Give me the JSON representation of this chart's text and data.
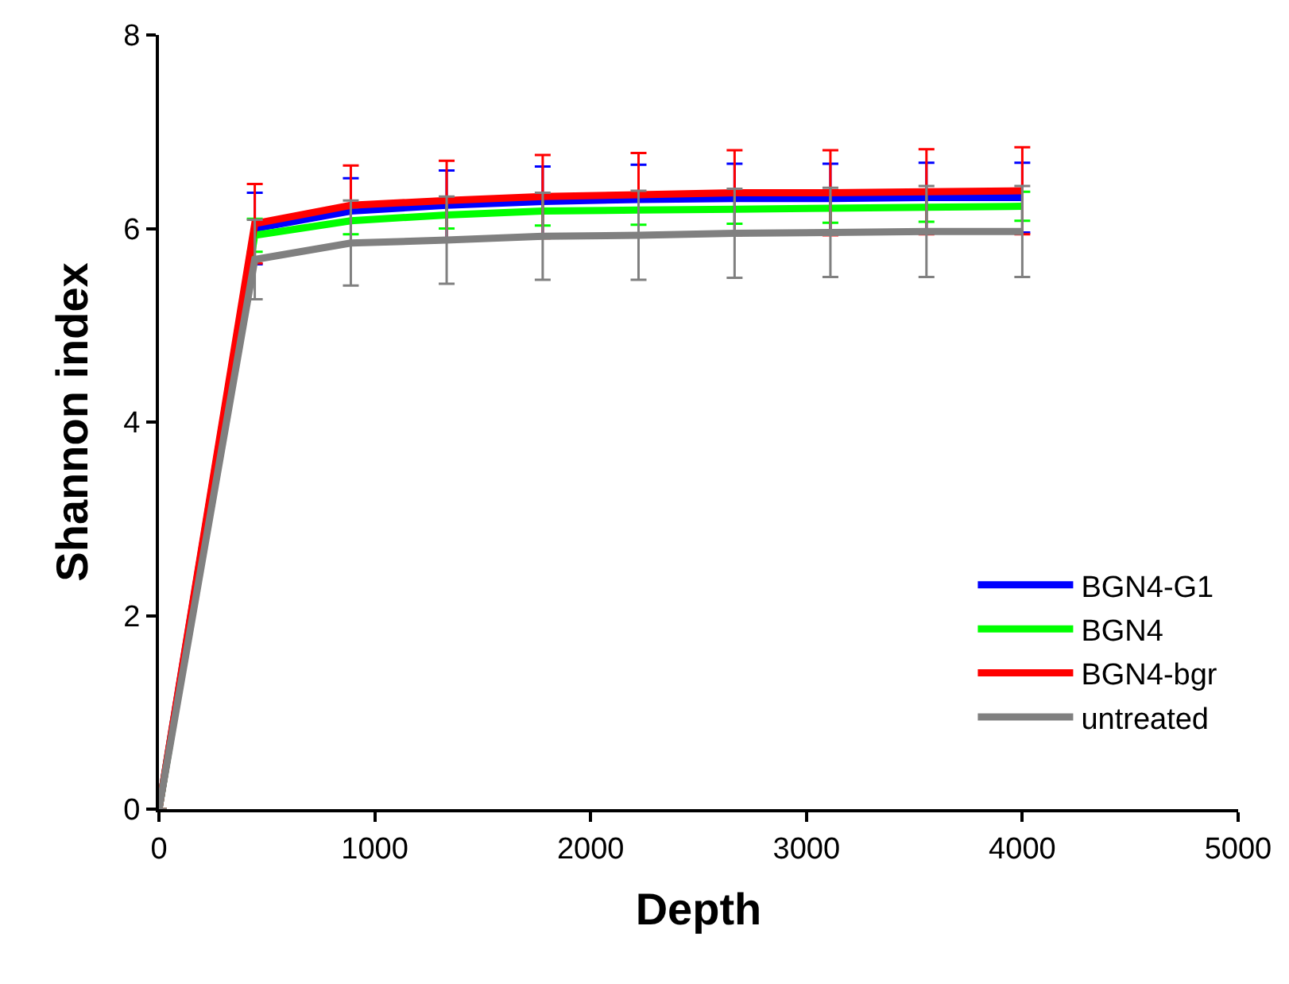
{
  "chart_data": {
    "type": "line",
    "xlabel": "Depth",
    "ylabel": "Shannon index",
    "x": [
      0,
      444,
      889,
      1333,
      1778,
      2222,
      2667,
      3111,
      3556,
      4000
    ],
    "xlim": [
      0,
      5000
    ],
    "xticks": [
      0,
      1000,
      2000,
      3000,
      4000,
      5000
    ],
    "ylim": [
      0,
      8
    ],
    "yticks": [
      0,
      2,
      4,
      6,
      8
    ],
    "grid": false,
    "legend": "bottom right",
    "marker": "none",
    "line_style": "solid",
    "series": [
      {
        "name": "BGN4-G1",
        "color": "#0000ff",
        "values": [
          0,
          6.0,
          6.18,
          6.24,
          6.28,
          6.3,
          6.31,
          6.31,
          6.32,
          6.32
        ],
        "errors": [
          null,
          0.37,
          0.34,
          0.36,
          0.36,
          0.36,
          0.36,
          0.36,
          0.36,
          0.36
        ]
      },
      {
        "name": "BGN4",
        "color": "#00ff00",
        "values": [
          0,
          5.93,
          6.08,
          6.14,
          6.18,
          6.19,
          6.2,
          6.21,
          6.22,
          6.23
        ],
        "errors": [
          null,
          0.17,
          0.14,
          0.14,
          0.15,
          0.15,
          0.15,
          0.15,
          0.15,
          0.15
        ]
      },
      {
        "name": "BGN4-bgr",
        "color": "#ff0000",
        "values": [
          0,
          6.05,
          6.24,
          6.29,
          6.33,
          6.35,
          6.37,
          6.37,
          6.38,
          6.39
        ],
        "errors": [
          null,
          0.41,
          0.41,
          0.41,
          0.43,
          0.43,
          0.44,
          0.44,
          0.44,
          0.45
        ]
      },
      {
        "name": "untreated",
        "color": "#808080",
        "values": [
          0,
          5.68,
          5.85,
          5.88,
          5.92,
          5.93,
          5.95,
          5.96,
          5.97,
          5.97
        ],
        "errors": [
          null,
          0.41,
          0.44,
          0.45,
          0.45,
          0.46,
          0.46,
          0.46,
          0.47,
          0.47
        ]
      }
    ]
  }
}
